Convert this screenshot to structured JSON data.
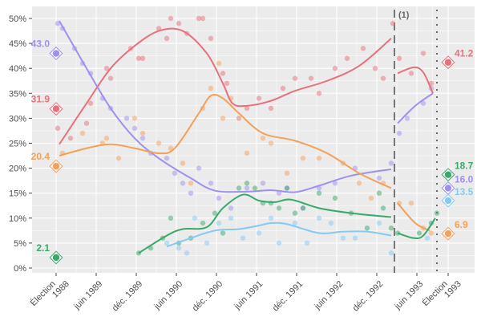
{
  "chart_data": {
    "type": "line",
    "title": "",
    "xlabel": "",
    "ylabel": "",
    "ylim": [
      0,
      52
    ],
    "grid": true,
    "y_ticks": [
      0,
      5,
      10,
      15,
      20,
      25,
      30,
      35,
      40,
      45,
      50
    ],
    "y_tick_suffix": "%",
    "x_ticks": [
      {
        "x": 1988.92,
        "label": "Élection\n1988"
      },
      {
        "x": 1989.42,
        "label": "juin 1989"
      },
      {
        "x": 1989.92,
        "label": "déc. 1989"
      },
      {
        "x": 1990.42,
        "label": "juin 1990"
      },
      {
        "x": 1990.92,
        "label": "déc. 1990"
      },
      {
        "x": 1991.42,
        "label": "juin 1991"
      },
      {
        "x": 1991.92,
        "label": "déc. 1991"
      },
      {
        "x": 1992.42,
        "label": "juin 1992"
      },
      {
        "x": 1992.92,
        "label": "déc. 1992"
      },
      {
        "x": 1993.42,
        "label": "juin 1993"
      },
      {
        "x": 1993.81,
        "label": "Élection\n1993"
      }
    ],
    "vlines": [
      {
        "x": 1993.14,
        "style": "dashed",
        "label": "(1)"
      },
      {
        "x": 1993.67,
        "style": "dotted",
        "label": ""
      }
    ],
    "series": [
      {
        "color": "#e8707a",
        "trend": [
          [
            [
              1988.96,
              24.8
            ],
            [
              1989.3,
              33
            ],
            [
              1989.6,
              40
            ],
            [
              1989.9,
              44.5
            ],
            [
              1990.2,
              47.5
            ],
            [
              1990.5,
              47.5
            ],
            [
              1990.8,
              43
            ],
            [
              1991.0,
              37
            ],
            [
              1991.12,
              33
            ],
            [
              1991.3,
              32.5
            ],
            [
              1991.6,
              33.5
            ],
            [
              1991.9,
              35.5
            ],
            [
              1992.3,
              37.5
            ],
            [
              1992.7,
              40.5
            ],
            [
              1993.1,
              46
            ]
          ],
          [
            [
              1993.18,
              39
            ],
            [
              1993.38,
              40.2
            ],
            [
              1993.5,
              39.2
            ],
            [
              1993.62,
              35
            ]
          ]
        ],
        "polls": [
          [
            1988.94,
            28
          ],
          [
            1989.1,
            26
          ],
          [
            1989.3,
            29
          ],
          [
            1989.35,
            33
          ],
          [
            1989.55,
            40
          ],
          [
            1989.6,
            38
          ],
          [
            1989.85,
            44
          ],
          [
            1989.95,
            42
          ],
          [
            1990.0,
            42
          ],
          [
            1990.2,
            48
          ],
          [
            1990.3,
            46
          ],
          [
            1990.35,
            50
          ],
          [
            1990.45,
            49
          ],
          [
            1990.55,
            47
          ],
          [
            1990.7,
            50
          ],
          [
            1990.75,
            50
          ],
          [
            1990.85,
            46
          ],
          [
            1991.0,
            39
          ],
          [
            1991.05,
            37
          ],
          [
            1991.2,
            30
          ],
          [
            1991.3,
            32
          ],
          [
            1991.45,
            34
          ],
          [
            1991.6,
            32
          ],
          [
            1991.75,
            36
          ],
          [
            1991.9,
            38
          ],
          [
            1992.1,
            38
          ],
          [
            1992.2,
            35
          ],
          [
            1992.4,
            40
          ],
          [
            1992.55,
            42
          ],
          [
            1992.75,
            44
          ],
          [
            1992.9,
            40
          ],
          [
            1993.0,
            38
          ],
          [
            1993.12,
            49
          ],
          [
            1993.2,
            42
          ],
          [
            1993.35,
            39
          ],
          [
            1993.5,
            43
          ],
          [
            1993.6,
            37
          ]
        ],
        "election_1988": 31.9,
        "election_1993": 41.2
      },
      {
        "color": "#9d90f0",
        "trend": [
          [
            [
              1988.96,
              49.5
            ],
            [
              1989.3,
              40
            ],
            [
              1989.6,
              32
            ],
            [
              1989.9,
              26
            ],
            [
              1990.2,
              22
            ],
            [
              1990.6,
              18
            ],
            [
              1990.9,
              15.5
            ],
            [
              1991.3,
              15.3
            ],
            [
              1991.6,
              15.6
            ],
            [
              1991.9,
              15.2
            ],
            [
              1992.2,
              16.5
            ],
            [
              1992.6,
              18.5
            ],
            [
              1993.1,
              19.8
            ]
          ],
          [
            [
              1993.18,
              29
            ],
            [
              1993.4,
              32.5
            ],
            [
              1993.62,
              35
            ]
          ]
        ],
        "polls": [
          [
            1988.94,
            49
          ],
          [
            1989.0,
            48
          ],
          [
            1989.15,
            44
          ],
          [
            1989.25,
            41
          ],
          [
            1989.35,
            39
          ],
          [
            1989.5,
            34
          ],
          [
            1989.6,
            32
          ],
          [
            1989.8,
            30
          ],
          [
            1989.9,
            28
          ],
          [
            1990.0,
            26
          ],
          [
            1990.1,
            23
          ],
          [
            1990.3,
            22
          ],
          [
            1990.4,
            19
          ],
          [
            1990.5,
            17
          ],
          [
            1990.6,
            15
          ],
          [
            1990.7,
            20
          ],
          [
            1990.85,
            17
          ],
          [
            1990.95,
            14
          ],
          [
            1991.1,
            12
          ],
          [
            1991.3,
            16
          ],
          [
            1991.5,
            17
          ],
          [
            1991.7,
            15
          ],
          [
            1991.8,
            16
          ],
          [
            1992.0,
            12
          ],
          [
            1992.2,
            16
          ],
          [
            1992.4,
            17
          ],
          [
            1992.65,
            20
          ],
          [
            1992.95,
            18
          ],
          [
            1993.1,
            21
          ],
          [
            1993.2,
            27
          ],
          [
            1993.3,
            30
          ],
          [
            1993.5,
            33
          ],
          [
            1993.6,
            36
          ]
        ],
        "election_1988": 43.0,
        "election_1993": 16.0
      },
      {
        "color": "#f4a05a",
        "trend": [
          [
            [
              1988.96,
              22.5
            ],
            [
              1989.3,
              24
            ],
            [
              1989.6,
              24.8
            ],
            [
              1989.9,
              24
            ],
            [
              1990.2,
              23
            ],
            [
              1990.4,
              24
            ],
            [
              1990.7,
              31
            ],
            [
              1990.85,
              34.5
            ],
            [
              1991.0,
              34
            ],
            [
              1991.2,
              31
            ],
            [
              1991.5,
              27
            ],
            [
              1991.9,
              25.5
            ],
            [
              1992.3,
              23
            ],
            [
              1992.7,
              19
            ],
            [
              1993.1,
              16
            ]
          ],
          [
            [
              1993.18,
              13
            ],
            [
              1993.4,
              9
            ],
            [
              1993.58,
              7.5
            ]
          ]
        ],
        "polls": [
          [
            1989.0,
            23
          ],
          [
            1989.25,
            27
          ],
          [
            1989.5,
            25
          ],
          [
            1989.55,
            26
          ],
          [
            1989.7,
            22
          ],
          [
            1989.9,
            30
          ],
          [
            1990.0,
            27
          ],
          [
            1990.2,
            25
          ],
          [
            1990.35,
            24
          ],
          [
            1990.5,
            21
          ],
          [
            1990.6,
            17
          ],
          [
            1990.75,
            32
          ],
          [
            1990.85,
            36
          ],
          [
            1990.95,
            41
          ],
          [
            1991.0,
            30
          ],
          [
            1991.1,
            34
          ],
          [
            1991.3,
            23
          ],
          [
            1991.5,
            26
          ],
          [
            1991.6,
            25
          ],
          [
            1991.8,
            19
          ],
          [
            1992.0,
            22
          ],
          [
            1992.2,
            22
          ],
          [
            1992.5,
            21
          ],
          [
            1992.7,
            17
          ],
          [
            1992.85,
            14
          ],
          [
            1993.0,
            17
          ],
          [
            1993.2,
            13
          ],
          [
            1993.35,
            13
          ],
          [
            1993.5,
            8
          ],
          [
            1993.6,
            7
          ]
        ],
        "election_1988": 20.4,
        "election_1993": 6.9
      },
      {
        "color": "#3aa86b",
        "trend": [
          [
            [
              1989.95,
              3
            ],
            [
              1990.3,
              6.5
            ],
            [
              1990.5,
              7.8
            ],
            [
              1990.8,
              8.2
            ],
            [
              1991.0,
              12
            ],
            [
              1991.25,
              14.7
            ],
            [
              1991.45,
              13.5
            ],
            [
              1991.65,
              13.2
            ],
            [
              1991.85,
              13.7
            ],
            [
              1992.2,
              12
            ],
            [
              1992.6,
              11
            ],
            [
              1993.1,
              10.2
            ]
          ],
          [
            [
              1993.18,
              7
            ],
            [
              1993.38,
              6
            ],
            [
              1993.5,
              6.5
            ],
            [
              1993.65,
              10
            ]
          ]
        ],
        "polls": [
          [
            1989.95,
            3
          ],
          [
            1990.1,
            4
          ],
          [
            1990.25,
            6
          ],
          [
            1990.35,
            10
          ],
          [
            1990.45,
            5
          ],
          [
            1990.6,
            6
          ],
          [
            1990.75,
            9
          ],
          [
            1990.9,
            11
          ],
          [
            1991.0,
            7
          ],
          [
            1991.2,
            16
          ],
          [
            1991.3,
            17
          ],
          [
            1991.4,
            16
          ],
          [
            1991.5,
            13
          ],
          [
            1991.6,
            13
          ],
          [
            1991.7,
            12
          ],
          [
            1991.8,
            16
          ],
          [
            1991.9,
            11
          ],
          [
            1992.0,
            12
          ],
          [
            1992.2,
            15
          ],
          [
            1992.4,
            14
          ],
          [
            1992.6,
            11
          ],
          [
            1992.8,
            8
          ],
          [
            1992.95,
            15
          ],
          [
            1993.0,
            12
          ],
          [
            1993.1,
            8
          ],
          [
            1993.18,
            7
          ],
          [
            1993.45,
            7
          ],
          [
            1993.6,
            9
          ],
          [
            1993.67,
            11
          ]
        ],
        "election_1988": 2.1,
        "election_1993": 18.7
      },
      {
        "color": "#86c8f4",
        "trend": [
          [
            [
              1990.3,
              4.3
            ],
            [
              1990.6,
              6
            ],
            [
              1990.9,
              7.5
            ],
            [
              1991.2,
              7.8
            ],
            [
              1991.45,
              8.5
            ],
            [
              1991.6,
              9
            ],
            [
              1991.8,
              8.8
            ],
            [
              1992.2,
              7
            ],
            [
              1992.5,
              7.3
            ],
            [
              1992.8,
              7.3
            ],
            [
              1993.1,
              6.5
            ]
          ]
        ],
        "polls": [
          [
            1990.3,
            5
          ],
          [
            1990.45,
            4
          ],
          [
            1990.55,
            3
          ],
          [
            1990.65,
            10
          ],
          [
            1990.8,
            5
          ],
          [
            1990.95,
            9
          ],
          [
            1991.1,
            10
          ],
          [
            1991.25,
            6
          ],
          [
            1991.45,
            7
          ],
          [
            1991.6,
            10
          ],
          [
            1991.7,
            5
          ],
          [
            1991.9,
            9
          ],
          [
            1992.05,
            5
          ],
          [
            1992.2,
            10
          ],
          [
            1992.35,
            9
          ],
          [
            1992.5,
            6
          ],
          [
            1992.65,
            6
          ],
          [
            1992.95,
            9
          ],
          [
            1993.1,
            3
          ],
          [
            1993.55,
            6
          ]
        ],
        "election_1988": null,
        "election_1993": 13.5
      }
    ],
    "labels_1988": [
      "43.0",
      "31.9",
      "20.4",
      "2.1"
    ],
    "labels_1993": [
      "41.2",
      "18.7",
      "16.0",
      "13.5",
      "6.9"
    ]
  }
}
